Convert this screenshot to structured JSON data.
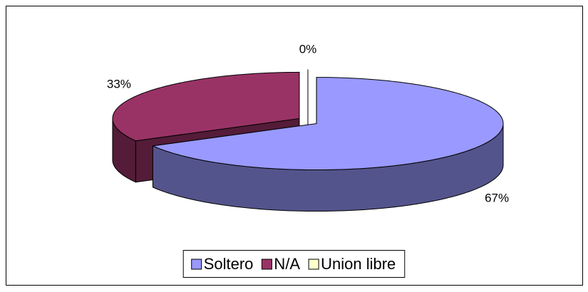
{
  "chart_data": {
    "type": "pie",
    "categories": [
      "Soltero",
      "N/A",
      "Union libre"
    ],
    "values": [
      67,
      33,
      0
    ],
    "value_labels": [
      "67%",
      "33%",
      "0%"
    ],
    "colors": [
      "#9999ff",
      "#993366",
      "#ffffcc"
    ],
    "legend": "bottom"
  }
}
